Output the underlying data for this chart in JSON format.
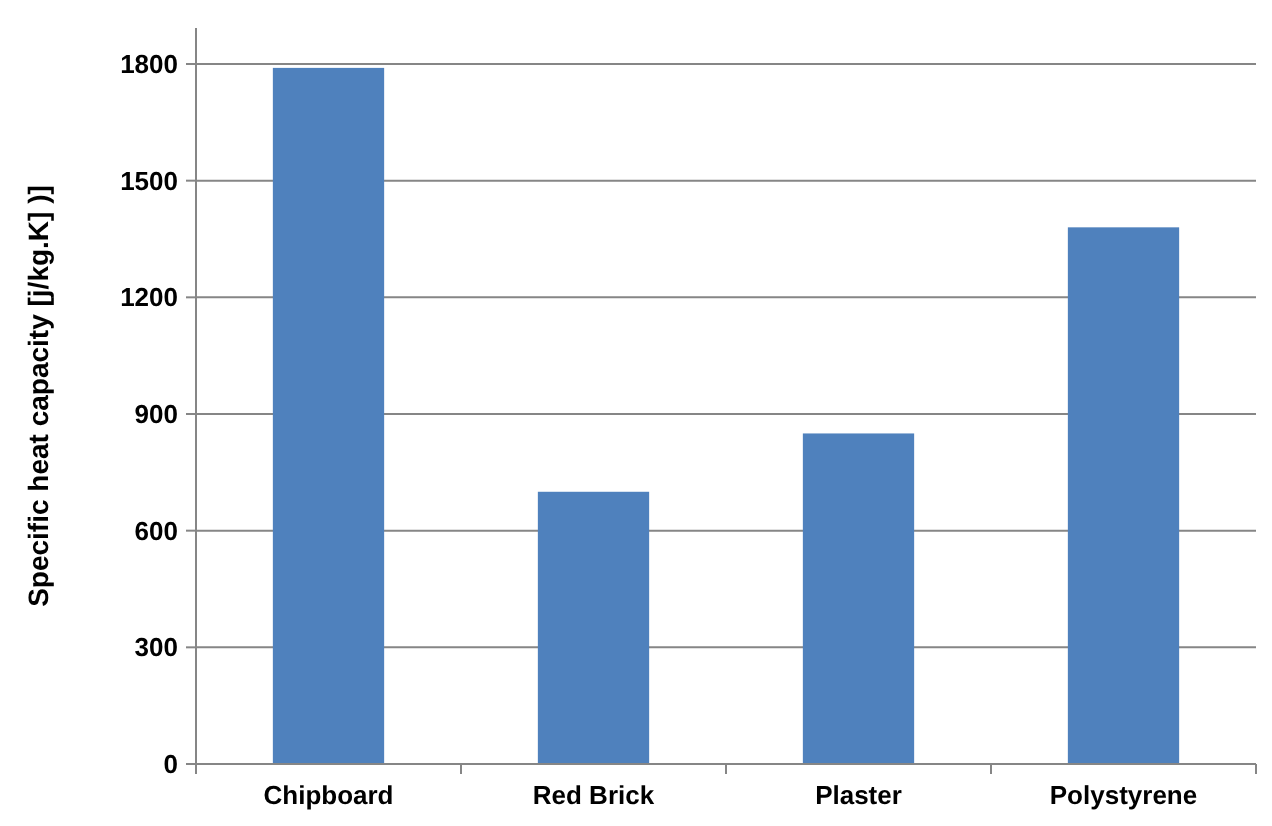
{
  "chart_data": {
    "type": "bar",
    "ylabel": "Specific heat capacity [j/kg.K] )]",
    "categories": [
      "Chipboard",
      "Red Brick",
      "Plaster",
      "Polystyrene"
    ],
    "values": [
      1790,
      700,
      850,
      1380
    ],
    "color": "#4f81bd",
    "ylim": [
      0,
      1800
    ],
    "yticks": [
      0,
      300,
      600,
      900,
      1200,
      1500,
      1800
    ],
    "grid": "y"
  }
}
